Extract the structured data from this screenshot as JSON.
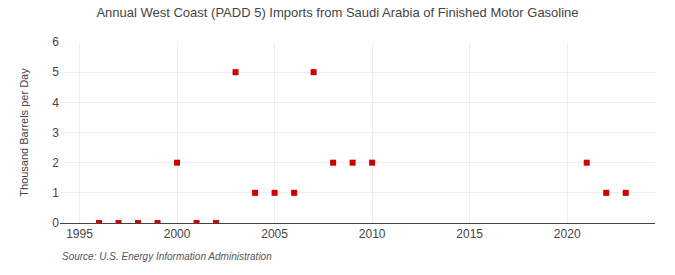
{
  "chart_data": {
    "type": "scatter",
    "title": "Annual West Coast (PADD 5) Imports from Saudi Arabia of Finished Motor Gasoline",
    "ylabel": "Thousand Barrels per Day",
    "annotations": [
      "Source: U.S. Energy Information Administration"
    ],
    "x": [
      1996,
      1997,
      1998,
      1999,
      2000,
      2001,
      2002,
      2003,
      2004,
      2005,
      2006,
      2007,
      2008,
      2009,
      2010,
      2021,
      2022,
      2023
    ],
    "values": [
      0,
      0,
      0,
      0,
      2,
      0,
      0,
      5,
      1,
      1,
      1,
      5,
      2,
      2,
      2,
      2,
      1,
      1
    ],
    "color": "#cc0000",
    "marker": "square",
    "xlim": [
      1994.0,
      2024.5
    ],
    "xticks": [
      1995,
      2000,
      2005,
      2010,
      2015,
      2020
    ],
    "ylim": [
      0,
      6
    ],
    "yticks": [
      0,
      1,
      2,
      3,
      4,
      5,
      6
    ],
    "grid": true
  }
}
